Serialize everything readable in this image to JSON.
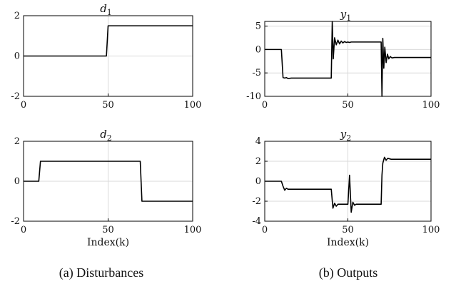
{
  "chart_data": [
    {
      "id": "d1",
      "type": "line",
      "title": "d",
      "title_sub": "1",
      "xlabel": "",
      "xlim": [
        0,
        100
      ],
      "ylim": [
        -2,
        2
      ],
      "xticks": [
        0,
        50,
        100
      ],
      "yticks": [
        -2,
        0,
        2
      ],
      "grid": true,
      "x": [
        0,
        49,
        50,
        100
      ],
      "y": [
        0,
        0,
        1.5,
        1.5
      ]
    },
    {
      "id": "y1",
      "type": "line",
      "title": "y",
      "title_sub": "1",
      "xlabel": "",
      "xlim": [
        0,
        100
      ],
      "ylim": [
        -10,
        6
      ],
      "xticks": [
        0,
        50,
        100
      ],
      "yticks": [
        -10,
        -5,
        0,
        5
      ],
      "grid": true,
      "x": [
        0,
        10,
        11,
        12,
        13,
        14,
        16,
        18,
        40,
        40.6,
        41.2,
        42,
        43,
        44,
        45,
        46,
        47,
        48,
        49,
        50,
        51,
        52,
        53,
        54,
        55,
        70,
        70.5,
        71,
        71.6,
        72.2,
        73,
        73.8,
        74.6,
        75.5,
        76.5,
        78,
        100
      ],
      "y": [
        0,
        0,
        -6.0,
        -6.1,
        -6.0,
        -6.2,
        -6.1,
        -6.1,
        -6.1,
        6.0,
        -2.0,
        2.5,
        1.0,
        2.0,
        1.2,
        1.8,
        1.4,
        1.7,
        1.5,
        1.6,
        1.5,
        1.6,
        1.6,
        1.6,
        1.6,
        1.6,
        -10,
        2.4,
        -4.0,
        0.5,
        -2.8,
        -1.0,
        -2.0,
        -1.5,
        -1.8,
        -1.7,
        -1.7
      ]
    },
    {
      "id": "d2",
      "type": "line",
      "title": "d",
      "title_sub": "2",
      "xlabel": "Index(k)",
      "xlim": [
        0,
        100
      ],
      "ylim": [
        -2,
        2
      ],
      "xticks": [
        0,
        50,
        100
      ],
      "yticks": [
        -2,
        0,
        2
      ],
      "grid": true,
      "x": [
        0,
        9,
        10,
        69,
        70,
        100
      ],
      "y": [
        0,
        0,
        1,
        1,
        -1,
        -1
      ]
    },
    {
      "id": "y2",
      "type": "line",
      "title": "y",
      "title_sub": "2",
      "xlabel": "Index(k)",
      "xlim": [
        0,
        100
      ],
      "ylim": [
        -4,
        4
      ],
      "xticks": [
        0,
        50,
        100
      ],
      "yticks": [
        -4,
        -2,
        0,
        2,
        4
      ],
      "grid": true,
      "x": [
        0,
        10,
        11,
        12,
        13,
        14,
        16,
        40,
        41,
        42,
        43,
        44,
        45,
        46,
        48,
        50,
        51,
        52,
        53,
        54,
        55,
        56,
        58,
        60,
        70,
        70.5,
        71,
        72,
        73,
        74,
        76,
        100
      ],
      "y": [
        0,
        0,
        -0.5,
        -0.9,
        -0.7,
        -0.8,
        -0.8,
        -0.8,
        -2.7,
        -2.2,
        -2.5,
        -2.3,
        -2.3,
        -2.3,
        -2.3,
        -2.3,
        0.6,
        -3.1,
        -2.1,
        -2.4,
        -2.3,
        -2.3,
        -2.3,
        -2.3,
        -2.3,
        0.6,
        1.8,
        2.4,
        2.1,
        2.3,
        2.2,
        2.2
      ]
    }
  ],
  "captions": {
    "left": "(a) Disturbances",
    "right": "(b) Outputs"
  }
}
